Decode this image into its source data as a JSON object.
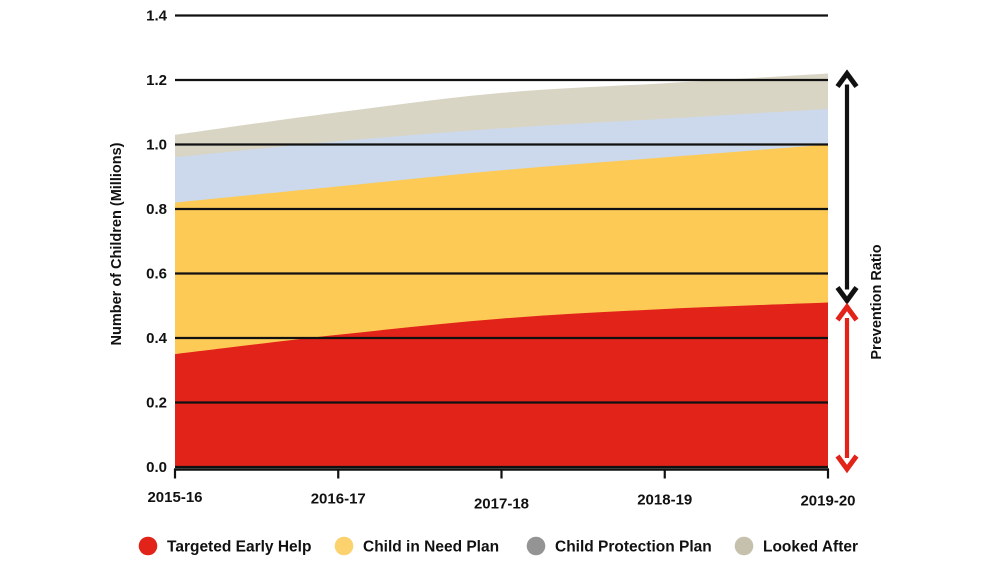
{
  "chart_data": {
    "type": "area",
    "stacked": true,
    "title": "",
    "ylabel": "Number of Children  (Millions)",
    "right_label": "Prevention Ratio",
    "categories": [
      "2015-16",
      "2016-17",
      "2017-18",
      "2018-19",
      "2019-20"
    ],
    "yticks": [
      "0.0",
      "0.2",
      "0.4",
      "0.6",
      "0.8",
      "1.0",
      "1.2",
      "1.4"
    ],
    "ylim": [
      0,
      1.4
    ],
    "grid": true,
    "legend_position": "bottom",
    "series": [
      {
        "name": "Targeted Early Help",
        "area_color": "#e2231a",
        "legend_color": "#e2231a",
        "values": [
          0.35,
          0.41,
          0.46,
          0.49,
          0.51
        ]
      },
      {
        "name": "Child in Need Plan",
        "area_color": "#fcca55",
        "legend_color": "#fbd26e",
        "values": [
          0.47,
          0.46,
          0.46,
          0.47,
          0.49
        ]
      },
      {
        "name": "Child Protection Plan",
        "area_color": "#ccd9ed",
        "legend_color": "#949494",
        "values": [
          0.14,
          0.14,
          0.13,
          0.12,
          0.11
        ]
      },
      {
        "name": "Looked After",
        "area_color": "#d9d5c5",
        "legend_color": "#c5c1ad",
        "values": [
          0.07,
          0.09,
          0.11,
          0.11,
          0.11
        ]
      }
    ],
    "cumulative_tops": {
      "targeted_early_help": [
        0.35,
        0.41,
        0.46,
        0.49,
        0.51
      ],
      "child_in_need_plan": [
        0.82,
        0.87,
        0.92,
        0.96,
        1.0
      ],
      "child_protection_plan": [
        0.96,
        1.01,
        1.05,
        1.08,
        1.11
      ],
      "looked_after": [
        1.03,
        1.1,
        1.16,
        1.19,
        1.22
      ]
    },
    "annotations": {
      "black_arrow_span": [
        0.51,
        1.22
      ],
      "black_arrow_color": "#111111",
      "red_arrow_span": [
        0.0,
        0.51
      ],
      "red_arrow_color": "#e2231a"
    }
  }
}
